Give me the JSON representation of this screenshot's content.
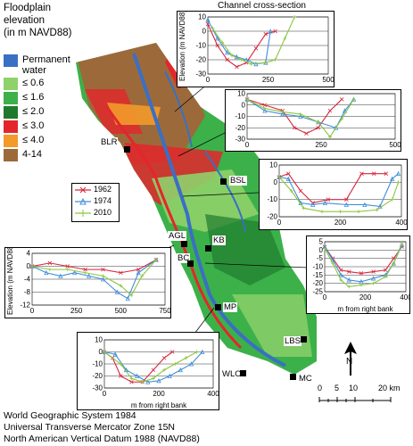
{
  "legend": {
    "title_lines": [
      "Floodplain",
      "elevation",
      "(in m NAVD88)"
    ],
    "items": [
      {
        "label": "Permanent water",
        "color": "#3a6fc4"
      },
      {
        "label": "≤ 0.6",
        "color": "#8fd16a"
      },
      {
        "label": "≤ 1.6",
        "color": "#3cb14a"
      },
      {
        "label": "≤ 2.0",
        "color": "#1f7a2e"
      },
      {
        "label": "≤ 3.0",
        "color": "#e3262c"
      },
      {
        "label": "≤ 4.0",
        "color": "#f39a2b"
      },
      {
        "label": "4-14",
        "color": "#9c6a3a"
      }
    ]
  },
  "section_title": "Channel cross-section",
  "survey_years": [
    {
      "label": "1962",
      "color": "#d7263d",
      "marker": "x"
    },
    {
      "label": "1974",
      "color": "#3f8fd8",
      "marker": "triangle"
    },
    {
      "label": "2010",
      "color": "#8dc63f",
      "marker": "plus"
    }
  ],
  "gauges": [
    "BLR",
    "BSL",
    "AGL",
    "KB",
    "BC",
    "MP",
    "LBS",
    "WLO",
    "MC"
  ],
  "scale": {
    "ticks": [
      "0",
      "5",
      "10",
      "20 km"
    ]
  },
  "north_label": "N",
  "footer_lines": [
    "World Geographic System 1984",
    "Universal Transverse Mercator Zone 15N",
    "North American Vertical Datum 1988 (NAVD88)"
  ],
  "chart_data": [
    {
      "type": "line",
      "name": "cross-section-1",
      "ylabel": "Elevation (m NAVD88)",
      "xlabel": "",
      "xlim": [
        0,
        500
      ],
      "ylim": [
        -30,
        10
      ],
      "xticks": [
        0,
        250,
        500
      ],
      "yticks": [
        10,
        0,
        -10,
        -20,
        -30
      ],
      "series": [
        {
          "name": "1962",
          "x": [
            0,
            40,
            80,
            120,
            160,
            200,
            240,
            280
          ],
          "y": [
            5,
            -10,
            -20,
            -25,
            -22,
            -12,
            -2,
            0
          ]
        },
        {
          "name": "1974",
          "x": [
            0,
            40,
            80,
            120,
            160,
            200,
            240,
            260
          ],
          "y": [
            8,
            -5,
            -15,
            -18,
            -20,
            -23,
            -22,
            0
          ]
        },
        {
          "name": "2010",
          "x": [
            20,
            60,
            100,
            140,
            180,
            240,
            280,
            320,
            360
          ],
          "y": [
            2,
            -8,
            -17,
            -20,
            -23,
            -22,
            -20,
            -5,
            10
          ]
        }
      ]
    },
    {
      "type": "line",
      "name": "cross-section-2",
      "ylabel": "",
      "xlabel": "",
      "xlim": [
        0,
        500
      ],
      "ylim": [
        -30,
        10
      ],
      "xticks": [
        0,
        250,
        500
      ],
      "yticks": [
        10,
        0,
        -10,
        -20,
        -30
      ],
      "series": [
        {
          "name": "1962",
          "x": [
            0,
            60,
            120,
            160,
            200,
            240,
            280,
            320
          ],
          "y": [
            5,
            0,
            -5,
            -20,
            -25,
            -20,
            -5,
            5
          ]
        },
        {
          "name": "1974",
          "x": [
            0,
            60,
            120,
            180,
            240,
            300,
            330,
            360
          ],
          "y": [
            5,
            -5,
            -8,
            -10,
            -15,
            -20,
            -5,
            5
          ]
        },
        {
          "name": "2010",
          "x": [
            0,
            60,
            120,
            180,
            240,
            280,
            320,
            360
          ],
          "y": [
            5,
            -3,
            -6,
            -8,
            -15,
            -28,
            -12,
            5
          ]
        }
      ]
    },
    {
      "type": "line",
      "name": "cross-section-3",
      "ylabel": "",
      "xlabel": "",
      "xlim": [
        0,
        400
      ],
      "ylim": [
        -20,
        10
      ],
      "xticks": [
        0,
        200,
        400
      ],
      "yticks": [
        10,
        0,
        -10,
        -20
      ],
      "series": [
        {
          "name": "1962",
          "x": [
            0,
            30,
            70,
            110,
            160,
            220,
            270,
            310,
            350
          ],
          "y": [
            3,
            5,
            -5,
            -12,
            -10,
            -10,
            5,
            5,
            5
          ]
        },
        {
          "name": "1974",
          "x": [
            0,
            30,
            70,
            110,
            150,
            220,
            280,
            330,
            370,
            390
          ],
          "y": [
            3,
            2,
            -12,
            -13,
            -12,
            -13,
            -13,
            -14,
            2,
            5
          ]
        },
        {
          "name": "2010",
          "x": [
            0,
            40,
            80,
            140,
            200,
            260,
            320,
            370,
            390
          ],
          "y": [
            3,
            -5,
            -15,
            -17,
            -17,
            -17,
            -16,
            -10,
            0
          ]
        }
      ]
    },
    {
      "type": "line",
      "name": "cross-section-4",
      "ylabel": "Elevation (m NAVD88)",
      "xlabel": "",
      "xlim": [
        0,
        750
      ],
      "ylim": [
        -12,
        4
      ],
      "xticks": [
        0,
        250,
        500,
        750
      ],
      "yticks": [
        4,
        0,
        -4,
        -8,
        -12
      ],
      "series": [
        {
          "name": "1962",
          "x": [
            0,
            100,
            200,
            300,
            400,
            500,
            600,
            700
          ],
          "y": [
            0,
            1,
            0,
            -1,
            -1,
            -2,
            -1,
            2
          ]
        },
        {
          "name": "1974",
          "x": [
            0,
            80,
            160,
            240,
            320,
            400,
            480,
            540,
            600,
            700
          ],
          "y": [
            0,
            -2,
            -3,
            -2,
            -3,
            -4,
            -8,
            -10,
            -2,
            2
          ]
        },
        {
          "name": "2010",
          "x": [
            0,
            100,
            200,
            300,
            400,
            500,
            560,
            620,
            700
          ],
          "y": [
            0,
            -1,
            -1,
            -2,
            -3,
            -6,
            -9,
            -3,
            2
          ]
        }
      ]
    },
    {
      "type": "line",
      "name": "cross-section-5",
      "ylabel": "",
      "xlabel": "m from right bank",
      "xlim": [
        0,
        400
      ],
      "ylim": [
        -25,
        5
      ],
      "xticks": [
        0,
        200,
        400
      ],
      "yticks": [
        5,
        0,
        -5,
        -10,
        -15,
        -20,
        -25
      ],
      "series": [
        {
          "name": "1962",
          "x": [
            0,
            40,
            80,
            120,
            180,
            240,
            300,
            340,
            380
          ],
          "y": [
            2,
            -5,
            -12,
            -13,
            -14,
            -13,
            -12,
            -5,
            2
          ]
        },
        {
          "name": "1974",
          "x": [
            0,
            40,
            80,
            120,
            180,
            240,
            300,
            340,
            380
          ],
          "y": [
            2,
            -6,
            -15,
            -18,
            -19,
            -17,
            -15,
            -8,
            3
          ]
        },
        {
          "name": "2010",
          "x": [
            0,
            40,
            80,
            120,
            180,
            240,
            300,
            340,
            380
          ],
          "y": [
            1,
            -8,
            -18,
            -22,
            -21,
            -20,
            -16,
            -8,
            4
          ]
        }
      ]
    },
    {
      "type": "line",
      "name": "cross-section-6",
      "ylabel": "",
      "xlabel": "m from right bank",
      "xlim": [
        0,
        400
      ],
      "ylim": [
        -30,
        10
      ],
      "xticks": [
        0,
        200,
        400
      ],
      "yticks": [
        10,
        0,
        -10,
        -20,
        -30
      ],
      "series": [
        {
          "name": "1962",
          "x": [
            0,
            30,
            60,
            100,
            140,
            180,
            220,
            250
          ],
          "y": [
            0,
            -5,
            -20,
            -25,
            -25,
            -15,
            -5,
            0
          ]
        },
        {
          "name": "1974",
          "x": [
            0,
            40,
            80,
            120,
            160,
            200,
            240,
            280,
            320,
            360
          ],
          "y": [
            0,
            -2,
            -15,
            -20,
            -25,
            -24,
            -20,
            -15,
            -10,
            0
          ]
        },
        {
          "name": "2010",
          "x": [
            0,
            60,
            100,
            140,
            180,
            220,
            260,
            300,
            340
          ],
          "y": [
            0,
            -10,
            -22,
            -25,
            -22,
            -15,
            -10,
            -5,
            0
          ]
        }
      ]
    }
  ]
}
